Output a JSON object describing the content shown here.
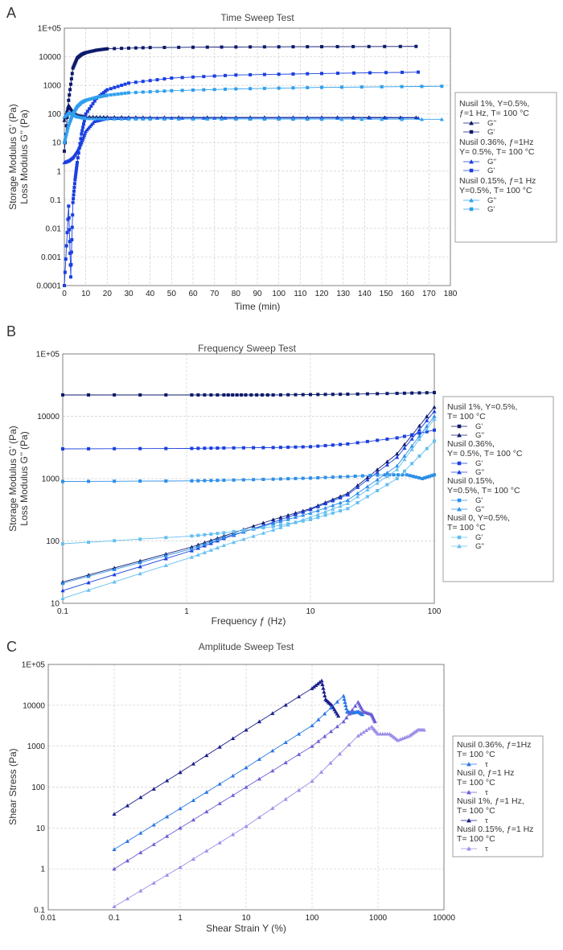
{
  "charts": [
    {
      "panel_letter": "A",
      "title": "Time Sweep Test",
      "ylabel1": "Storage Modulus G’ (Pa)",
      "ylabel2": "Loss Modulus G’’ (Pa)",
      "xlabel": "Time (min)",
      "x_ticks": [
        "0",
        "10",
        "20",
        "30",
        "40",
        "50",
        "60",
        "70",
        "80",
        "90",
        "100",
        "110",
        "120",
        "130",
        "140",
        "150",
        "160",
        "170",
        "180"
      ],
      "y_ticks": [
        "1E+05",
        "10000",
        "1000",
        "100",
        "10",
        "1",
        "0.1",
        "0.01",
        "0.001",
        "0.0001"
      ],
      "legend_groups": [
        {
          "lines": [
            "Nusil 1%, Υ=0.5%,",
            "ƒ=1 Hz, T= 100 °C"
          ],
          "entries": [
            "G''",
            "G'"
          ]
        },
        {
          "lines": [
            "Nusil 0.36%, ƒ=1Hz",
            "Υ= 0.5%, T= 100 °C"
          ],
          "entries": [
            "G''",
            "G'"
          ]
        },
        {
          "lines": [
            "Nusil 0.15%, ƒ=1 Hz",
            "Υ=0.5%, T= 100 °C"
          ],
          "entries": [
            "G''",
            "G'"
          ]
        }
      ]
    },
    {
      "panel_letter": "B",
      "title": "Frequency Sweep Test",
      "ylabel1": "Storage Modulus G’ (Pa)",
      "ylabel2": "Loss Modulus G’’ (Pa)",
      "xlabel": "Frequency ƒ (Hz)",
      "x_ticks": [
        "0.1",
        "1",
        "10",
        "100"
      ],
      "y_ticks": [
        "1E+05",
        "10000",
        "1000",
        "100",
        "10"
      ],
      "legend_groups": [
        {
          "lines": [
            "Nusil 1%, Υ=0.5%,",
            "T= 100 °C"
          ],
          "entries": [
            "G'",
            "G''"
          ]
        },
        {
          "lines": [
            "Nusil 0.36%,",
            "Υ= 0.5%, T= 100 °C"
          ],
          "entries": [
            "G'",
            "G''"
          ]
        },
        {
          "lines": [
            "Nusil 0.15%,",
            "Υ=0.5%, T= 100 °C"
          ],
          "entries": [
            "G'",
            "G''"
          ]
        },
        {
          "lines": [
            "Nusil 0, Υ=0.5%,",
            "T= 100 °C"
          ],
          "entries": [
            "G'",
            "G''"
          ]
        }
      ]
    },
    {
      "panel_letter": "C",
      "title": "Amplitude Sweep Test",
      "ylabel1": "Shear Stress (Pa)",
      "ylabel2": "",
      "xlabel": "Shear Strain Υ (%)",
      "x_ticks": [
        "0.01",
        "0.1",
        "1",
        "10",
        "100",
        "1000",
        "10000"
      ],
      "y_ticks": [
        "1E+05",
        "10000",
        "1000",
        "100",
        "10",
        "1",
        "0.1"
      ],
      "legend_groups": [
        {
          "lines": [
            "Nusil 0.36%, ƒ=1Hz",
            "T= 100 °C"
          ],
          "entries": [
            "τ"
          ]
        },
        {
          "lines": [
            "Nusil 0, ƒ=1 Hz",
            "T= 100 °C"
          ],
          "entries": [
            "τ"
          ]
        },
        {
          "lines": [
            "Nusil 1%, ƒ=1 Hz,",
            "T= 100 °C"
          ],
          "entries": [
            "τ"
          ]
        },
        {
          "lines": [
            "Nusil 0.15%, ƒ=1 Hz",
            "T= 100 °C"
          ],
          "entries": [
            "τ"
          ]
        }
      ]
    }
  ],
  "chart_data": [
    {
      "type": "scatter",
      "title": "Time Sweep Test",
      "xlabel": "Time (min)",
      "ylabel": "Storage Modulus G’ (Pa) / Loss Modulus G’’ (Pa)",
      "x_scale": "linear",
      "y_scale": "log",
      "xlim": [
        0,
        180
      ],
      "ylim": [
        0.0001,
        100000
      ],
      "series": [
        {
          "name": "Nusil 1% G'",
          "color": "#0d1a6b",
          "marker": "square",
          "x": [
            0,
            2,
            4,
            6,
            8,
            10,
            15,
            20,
            40,
            80,
            120,
            164
          ],
          "y": [
            5,
            300,
            4000,
            9000,
            12000,
            14000,
            17000,
            19000,
            21000,
            22000,
            22500,
            23000
          ]
        },
        {
          "name": "Nusil 1% G''",
          "color": "#0d1a6b",
          "marker": "triangle",
          "x": [
            0,
            2,
            4,
            6,
            10,
            20,
            40,
            80,
            120,
            164
          ],
          "y": [
            60,
            200,
            120,
            90,
            80,
            78,
            76,
            76,
            76,
            75
          ]
        },
        {
          "name": "Nusil 0.36% G'",
          "color": "#1a3fe0",
          "marker": "square",
          "x": [
            0,
            2,
            3,
            4,
            5,
            6,
            8,
            10,
            15,
            20,
            30,
            50,
            80,
            120,
            165
          ],
          "y": [
            0.0001,
            0.06,
            0.0002,
            0.08,
            0.5,
            2,
            20,
            100,
            350,
            700,
            1200,
            1800,
            2300,
            2600,
            2900
          ]
        },
        {
          "name": "Nusil 0.36% G''",
          "color": "#1a3fe0",
          "marker": "triangle",
          "x": [
            0,
            2,
            4,
            6,
            8,
            10,
            14,
            20,
            30,
            50,
            80,
            120,
            165
          ],
          "y": [
            2,
            2.3,
            3,
            5,
            10,
            25,
            55,
            70,
            72,
            72,
            72,
            72,
            72
          ]
        },
        {
          "name": "Nusil 0.15% G'",
          "color": "#2fa0ee",
          "marker": "square",
          "x": [
            0,
            2,
            4,
            6,
            8,
            10,
            15,
            20,
            30,
            50,
            80,
            120,
            176
          ],
          "y": [
            10,
            40,
            100,
            180,
            250,
            300,
            380,
            450,
            550,
            650,
            750,
            850,
            930
          ]
        },
        {
          "name": "Nusil 0.15% G''",
          "color": "#2fa0ee",
          "marker": "triangle",
          "x": [
            0,
            2,
            4,
            6,
            10,
            20,
            40,
            80,
            120,
            176
          ],
          "y": [
            80,
            110,
            95,
            80,
            70,
            68,
            67,
            67,
            66,
            65
          ]
        }
      ]
    },
    {
      "type": "scatter",
      "title": "Frequency Sweep Test",
      "xlabel": "Frequency ƒ (Hz)",
      "ylabel": "Storage Modulus G’ (Pa) / Loss Modulus G’’ (Pa)",
      "x_scale": "log",
      "y_scale": "log",
      "xlim": [
        0.1,
        100
      ],
      "ylim": [
        10,
        100000
      ],
      "series": [
        {
          "name": "Nusil 1% G'",
          "color": "#0d1a6b",
          "marker": "square",
          "x": [
            0.1,
            1.1,
            2,
            3,
            5,
            10,
            20,
            50,
            100
          ],
          "y": [
            22000,
            22000,
            22000,
            22000,
            22000,
            22300,
            22600,
            23300,
            24000
          ]
        },
        {
          "name": "Nusil 1% G''",
          "color": "#0d1a6b",
          "marker": "triangle",
          "x": [
            0.1,
            1.1,
            2,
            5,
            10,
            20,
            50,
            100
          ],
          "y": [
            22,
            80,
            120,
            220,
            330,
            580,
            2500,
            14000
          ]
        },
        {
          "name": "Nusil 0.36% G'",
          "color": "#1a3fe0",
          "marker": "square",
          "x": [
            0.1,
            1.1,
            2,
            5,
            10,
            20,
            50,
            100
          ],
          "y": [
            3000,
            3050,
            3100,
            3150,
            3250,
            3600,
            4500,
            6000
          ]
        },
        {
          "name": "Nusil 0.36% G''",
          "color": "#1a3fe0",
          "marker": "triangle",
          "x": [
            0.1,
            1.1,
            2,
            5,
            10,
            20,
            50,
            100
          ],
          "y": [
            16,
            70,
            110,
            200,
            320,
            550,
            2200,
            12000
          ]
        },
        {
          "name": "Nusil 0.15% G'",
          "color": "#2e8fe8",
          "marker": "square",
          "x": [
            0.1,
            1.1,
            2,
            5,
            10,
            20,
            40,
            60,
            80,
            100
          ],
          "y": [
            900,
            920,
            940,
            980,
            1020,
            1080,
            1150,
            1150,
            1000,
            1150
          ]
        },
        {
          "name": "Nusil 0.15% G''",
          "color": "#2e8fe8",
          "marker": "triangle",
          "x": [
            0.1,
            1.1,
            2,
            5,
            10,
            20,
            50,
            100
          ],
          "y": [
            21,
            75,
            115,
            190,
            280,
            450,
            1600,
            10000
          ]
        },
        {
          "name": "Nusil 0 G'",
          "color": "#66bff0",
          "marker": "square",
          "x": [
            0.1,
            1.1,
            2,
            5,
            10,
            20,
            50,
            100
          ],
          "y": [
            90,
            120,
            135,
            170,
            220,
            330,
            1000,
            4000
          ]
        },
        {
          "name": "Nusil 0 G''",
          "color": "#66bff0",
          "marker": "triangle",
          "x": [
            0.1,
            1.1,
            2,
            5,
            10,
            20,
            50,
            100
          ],
          "y": [
            12,
            55,
            85,
            150,
            240,
            400,
            1400,
            9000
          ]
        }
      ]
    },
    {
      "type": "scatter",
      "title": "Amplitude Sweep Test",
      "xlabel": "Shear Strain Υ (%)",
      "ylabel": "Shear Stress (Pa)",
      "x_scale": "log",
      "y_scale": "log",
      "xlim": [
        0.01,
        10000
      ],
      "ylim": [
        0.1,
        100000
      ],
      "series": [
        {
          "name": "Nusil 1% τ",
          "color": "#1a1f8a",
          "marker": "triangle",
          "x": [
            0.1,
            1,
            10,
            100,
            140,
            160,
            200,
            250
          ],
          "y": [
            22,
            230,
            2500,
            26000,
            40000,
            14000,
            10000,
            5500
          ]
        },
        {
          "name": "Nusil 0.36% τ",
          "color": "#2a78e6",
          "marker": "triangle",
          "x": [
            0.1,
            1,
            10,
            100,
            300,
            340,
            400,
            500,
            580
          ],
          "y": [
            3,
            30,
            300,
            3200,
            17000,
            7000,
            6500,
            7000,
            6000
          ]
        },
        {
          "name": "Nusil 0 τ",
          "color": "#6a5fd6",
          "marker": "triangle",
          "x": [
            0.1,
            1,
            10,
            100,
            300,
            500,
            600,
            800,
            900
          ],
          "y": [
            1,
            10,
            100,
            1000,
            4000,
            12000,
            7000,
            6000,
            4000
          ]
        },
        {
          "name": "Nusil 0.15% τ",
          "color": "#9d8fe8",
          "marker": "triangle",
          "x": [
            0.1,
            1,
            10,
            100,
            500,
            800,
            1000,
            1500,
            2000,
            3000,
            4000,
            5000
          ],
          "y": [
            0.12,
            1.1,
            11,
            140,
            1800,
            3000,
            2000,
            2000,
            1400,
            1800,
            2500,
            2500
          ]
        }
      ]
    }
  ]
}
